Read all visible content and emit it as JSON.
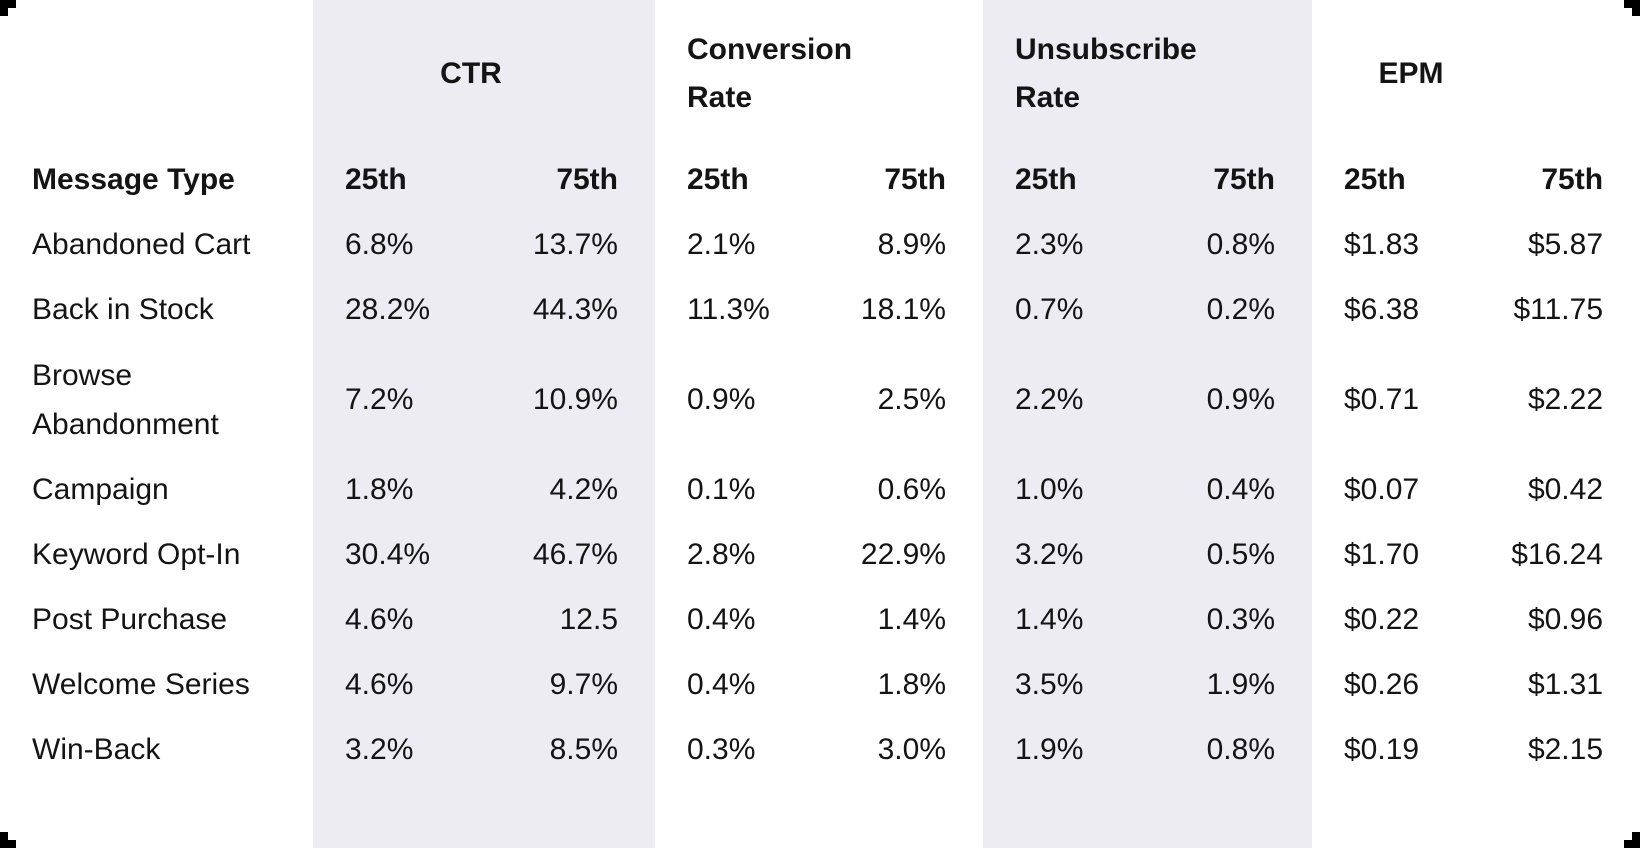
{
  "chart_data": {
    "type": "table",
    "row_header_label": "Message Type",
    "percentile_labels": {
      "p25": "25th",
      "p75": "75th"
    },
    "metric_groups": [
      "CTR",
      "Conversion Rate",
      "Unsubscribe Rate",
      "EPM"
    ],
    "columns": [
      "Message Type",
      "CTR 25th",
      "CTR 75th",
      "Conversion Rate 25th",
      "Conversion Rate 75th",
      "Unsubscribe Rate 25th",
      "Unsubscribe Rate 75th",
      "EPM 25th",
      "EPM 75th"
    ],
    "rows": [
      {
        "label": "Abandoned Cart",
        "values": [
          "6.8%",
          "13.7%",
          "2.1%",
          "8.9%",
          "2.3%",
          "0.8%",
          "$1.83",
          "$5.87"
        ]
      },
      {
        "label": "Back in Stock",
        "values": [
          "28.2%",
          "44.3%",
          "11.3%",
          "18.1%",
          "0.7%",
          "0.2%",
          "$6.38",
          "$11.75"
        ]
      },
      {
        "label": "Browse Abandonment",
        "values": [
          "7.2%",
          "10.9%",
          "0.9%",
          "2.5%",
          "2.2%",
          "0.9%",
          "$0.71",
          "$2.22"
        ]
      },
      {
        "label": "Campaign",
        "values": [
          "1.8%",
          "4.2%",
          "0.1%",
          "0.6%",
          "1.0%",
          "0.4%",
          "$0.07",
          "$0.42"
        ]
      },
      {
        "label": "Keyword Opt-In",
        "values": [
          "30.4%",
          "46.7%",
          "2.8%",
          "22.9%",
          "3.2%",
          "0.5%",
          "$1.70",
          "$16.24"
        ]
      },
      {
        "label": "Post Purchase",
        "values": [
          "4.6%",
          "12.5",
          "0.4%",
          "1.4%",
          "1.4%",
          "0.3%",
          "$0.22",
          "$0.96"
        ]
      },
      {
        "label": "Welcome Series",
        "values": [
          "4.6%",
          "9.7%",
          "0.4%",
          "1.8%",
          "3.5%",
          "1.9%",
          "$0.26",
          "$1.31"
        ]
      },
      {
        "label": "Win-Back",
        "values": [
          "3.2%",
          "8.5%",
          "0.3%",
          "3.0%",
          "1.9%",
          "0.8%",
          "$0.19",
          "$2.15"
        ]
      }
    ]
  },
  "style": {
    "background": "#FFFFFF",
    "band_color": "#ECECF2",
    "text_color": "#141414",
    "corner_mark_color": "#000000"
  }
}
